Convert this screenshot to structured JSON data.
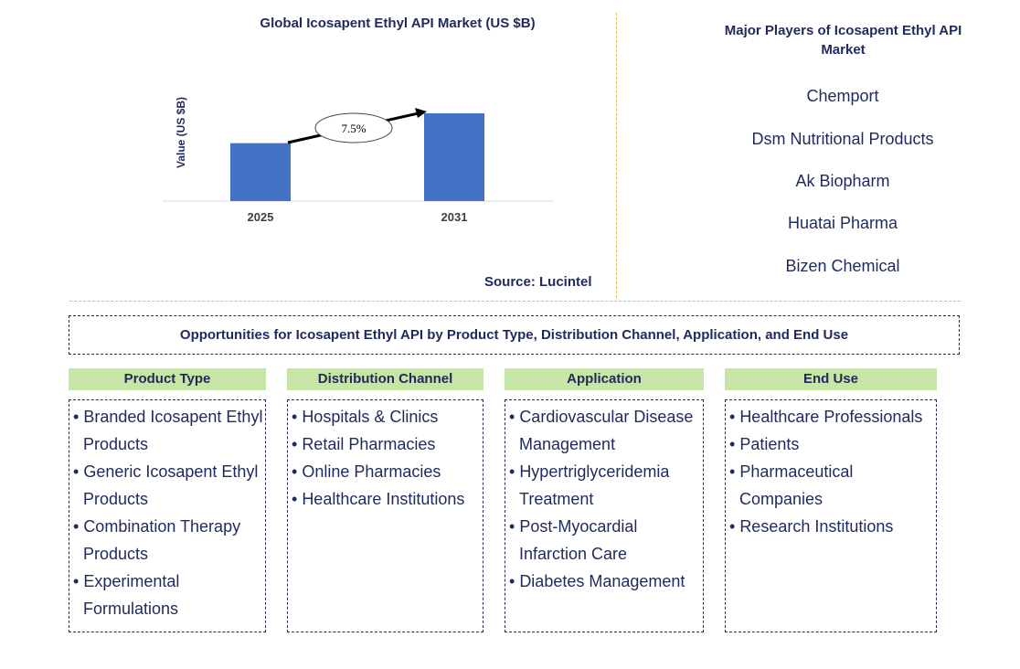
{
  "chart_data": {
    "type": "bar",
    "title": "Global Icosapent Ethyl API Market (US $B)",
    "ylabel": "Value (US $B)",
    "categories": [
      "2025",
      "2031"
    ],
    "values": [
      0.66,
      1.0
    ],
    "cagr_label": "7.5%",
    "bar_color": "#4472c4"
  },
  "source": "Source: Lucintel",
  "players": {
    "title": "Major Players of Icosapent Ethyl API Market",
    "items": [
      "Chemport",
      "Dsm Nutritional Products",
      "Ak Biopharm",
      "Huatai Pharma",
      "Bizen Chemical"
    ]
  },
  "opportunities_title": "Opportunities for Icosapent Ethyl API by Product Type, Distribution Channel, Application, and End Use",
  "columns": [
    {
      "header": "Product Type",
      "items": [
        "Branded Icosapent Ethyl Products",
        "Generic Icosapent Ethyl Products",
        "Combination Therapy Products",
        "Experimental Formulations"
      ]
    },
    {
      "header": "Distribution Channel",
      "items": [
        "Hospitals & Clinics",
        "Retail Pharmacies",
        "Online Pharmacies",
        "Healthcare Institutions"
      ]
    },
    {
      "header": "Application",
      "items": [
        "Cardiovascular Disease Management",
        "Hypertriglyceridemia Treatment",
        "Post-Myocardial Infarction Care",
        "Diabetes Management"
      ]
    },
    {
      "header": "End Use",
      "items": [
        "Healthcare Professionals",
        "Patients",
        "Pharmaceutical Companies",
        "Research Institutions"
      ]
    }
  ],
  "colors": {
    "accent_green": "#c6e6a5",
    "divider": "#f0b840",
    "text": "#1f2a5c"
  }
}
